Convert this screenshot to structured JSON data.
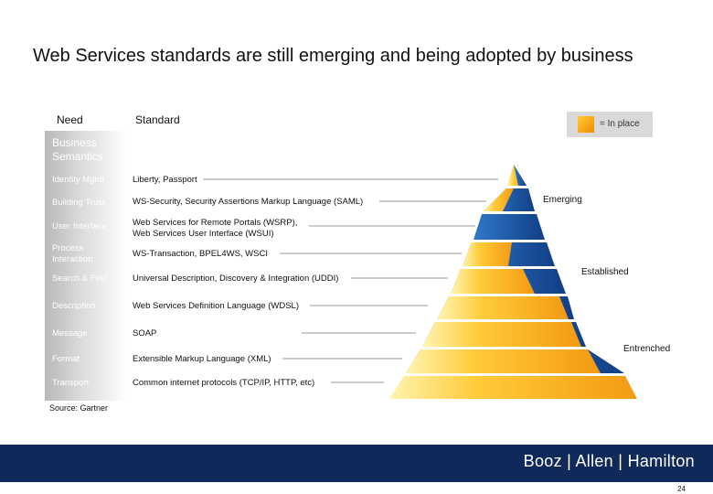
{
  "title": "Web Services standards are still emerging and being adopted by business",
  "headers": {
    "need": "Need",
    "standard": "Standard"
  },
  "legend": {
    "text": "= In place",
    "swatch_color": "#f5a623"
  },
  "business_semantics": "Business Semantics",
  "rows": [
    {
      "need": "Identity Mgmt",
      "standard": "Liberty, Passport"
    },
    {
      "need": "Building Trust",
      "standard": "WS-Security, Security Assertions Markup Language (SAML)"
    },
    {
      "need": "User Interface",
      "standard": "Web Services for Remote Portals (WSRP), Web Services User Interface (WSUI)"
    },
    {
      "need": "Process Interaction",
      "standard": "WS-Transaction, BPEL4WS, WSCI"
    },
    {
      "need": "Search & Find",
      "standard": "Universal Description, Discovery & Integration (UDDI)"
    },
    {
      "need": "Description",
      "standard": "Web Services Definition Language (WDSL)"
    },
    {
      "need": "Message",
      "standard": "SOAP"
    },
    {
      "need": "Format",
      "standard": "Extensible Markup Language (XML)"
    },
    {
      "need": "Transport",
      "standard": "Common internet protocols (TCP/IP, HTTP, etc)"
    }
  ],
  "stages": {
    "emerging": "Emerging",
    "established": "Established",
    "entrenched": "Entrenched"
  },
  "source": "Source: Gartner",
  "brand": "Booz | Allen | Hamilton",
  "page_number": "24",
  "colors": {
    "orange": "#f5a623",
    "blue": "#1f5fb0",
    "footer": "#0f2a5a"
  }
}
